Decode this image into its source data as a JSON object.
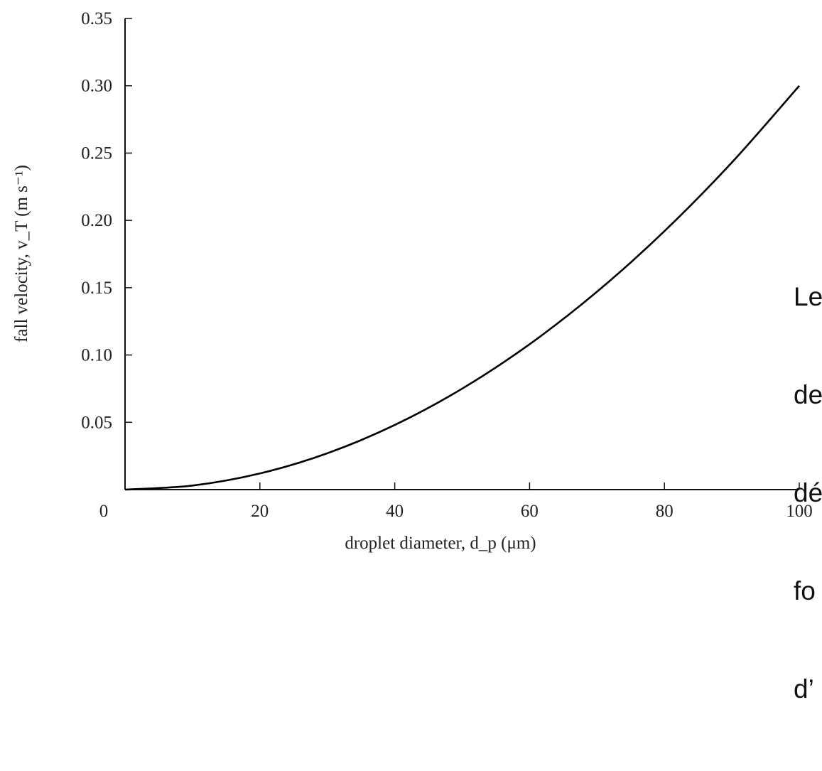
{
  "chart_data": {
    "type": "line",
    "title": "",
    "xlabel": "droplet diameter, d_p (μm)",
    "ylabel": "fall velocity, v_T (m s⁻¹)",
    "xlim": [
      0,
      100
    ],
    "ylim": [
      0,
      0.35
    ],
    "x_ticks": [
      "0",
      "20",
      "40",
      "60",
      "80",
      "100"
    ],
    "y_ticks": [
      "0.05",
      "0.10",
      "0.15",
      "0.20",
      "0.25",
      "0.30",
      "0.35"
    ],
    "grid": false,
    "series": [
      {
        "x": [
          0,
          10,
          20,
          30,
          40,
          50,
          60,
          70,
          80,
          90,
          100
        ],
        "y": [
          0,
          0.003,
          0.012,
          0.027,
          0.048,
          0.075,
          0.108,
          0.147,
          0.192,
          0.243,
          0.3
        ]
      }
    ]
  },
  "overlay": {
    "lines": [
      "Le",
      "de",
      "dé",
      "fo",
      "d’"
    ]
  }
}
